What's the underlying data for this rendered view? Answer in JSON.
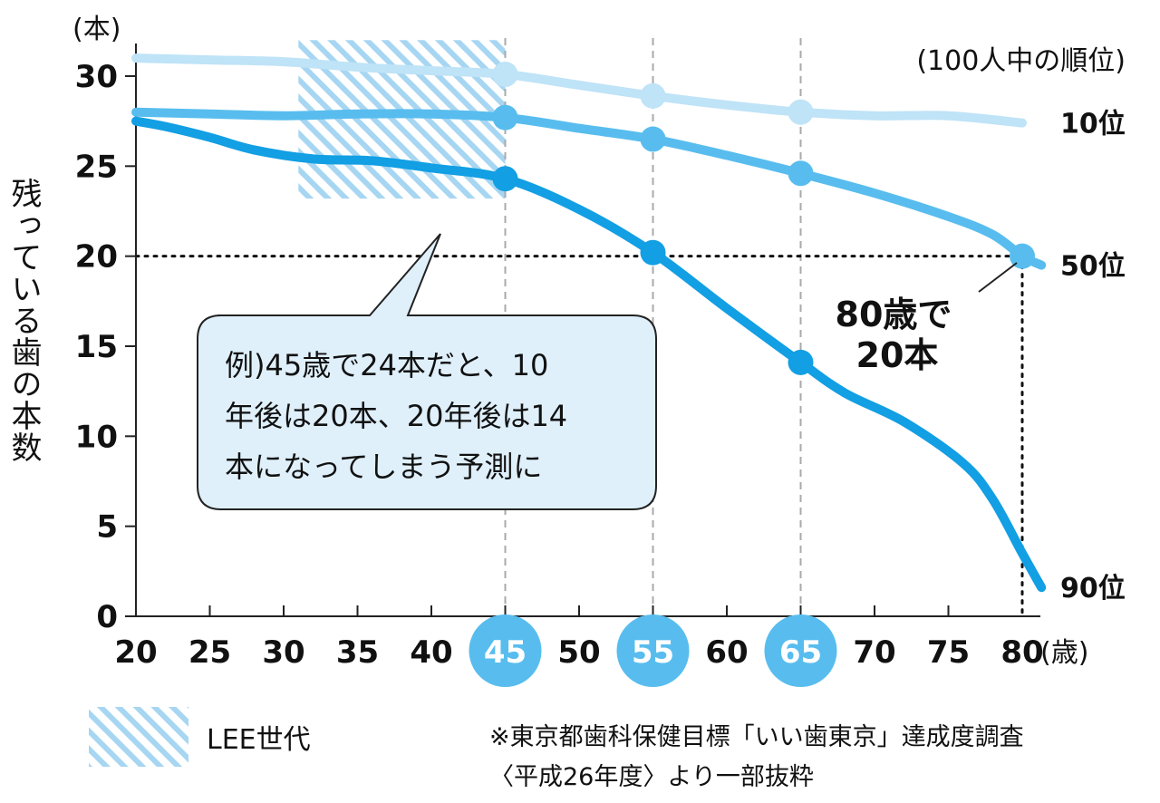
{
  "chart_data": {
    "type": "line",
    "y_unit": "(本)",
    "x_unit": "(歳)",
    "ylabel": "残っている歯の本数",
    "legend_title": "(100人中の順位)",
    "x_ticks": [
      20,
      25,
      30,
      35,
      40,
      45,
      50,
      55,
      60,
      65,
      70,
      75,
      80
    ],
    "highlighted_ticks": [
      45,
      55,
      65
    ],
    "y_ticks": [
      0,
      5,
      10,
      15,
      20,
      25,
      30
    ],
    "xlim": [
      20,
      81.5
    ],
    "ylim": [
      0,
      32
    ],
    "grid": false,
    "vertical_guides": [
      45,
      55,
      65
    ],
    "series": [
      {
        "name": "10位",
        "color": "#bfe3f7",
        "points": [
          [
            20,
            31.0
          ],
          [
            25,
            30.9
          ],
          [
            30,
            30.8
          ],
          [
            35,
            30.5
          ],
          [
            40,
            30.3
          ],
          [
            45,
            30.1
          ],
          [
            50,
            29.5
          ],
          [
            55,
            28.9
          ],
          [
            60,
            28.4
          ],
          [
            65,
            28.0
          ],
          [
            70,
            27.8
          ],
          [
            75,
            27.8
          ],
          [
            80,
            27.4
          ]
        ],
        "markers": [
          [
            45,
            30.1
          ],
          [
            55,
            28.9
          ],
          [
            65,
            28.0
          ]
        ]
      },
      {
        "name": "50位",
        "color": "#58bdee",
        "points": [
          [
            20,
            28.0
          ],
          [
            25,
            27.9
          ],
          [
            30,
            27.8
          ],
          [
            35,
            27.9
          ],
          [
            40,
            27.9
          ],
          [
            45,
            27.7
          ],
          [
            50,
            27.1
          ],
          [
            55,
            26.5
          ],
          [
            60,
            25.6
          ],
          [
            65,
            24.6
          ],
          [
            70,
            23.5
          ],
          [
            75,
            22.2
          ],
          [
            78,
            21.2
          ],
          [
            80,
            20.0
          ],
          [
            81.3,
            19.5
          ]
        ],
        "markers": [
          [
            45,
            27.7
          ],
          [
            55,
            26.5
          ],
          [
            65,
            24.6
          ],
          [
            80,
            20.0
          ]
        ]
      },
      {
        "name": "90位",
        "color": "#129fe3",
        "points": [
          [
            20,
            27.5
          ],
          [
            22,
            27.2
          ],
          [
            25,
            26.6
          ],
          [
            28,
            25.9
          ],
          [
            32,
            25.4
          ],
          [
            36,
            25.3
          ],
          [
            40,
            24.9
          ],
          [
            45,
            24.3
          ],
          [
            50,
            22.6
          ],
          [
            55,
            20.2
          ],
          [
            60,
            17.1
          ],
          [
            65,
            14.1
          ],
          [
            68,
            12.4
          ],
          [
            72,
            10.8
          ],
          [
            76,
            8.5
          ],
          [
            78,
            6.5
          ],
          [
            80,
            3.5
          ],
          [
            81.3,
            1.6
          ]
        ],
        "markers": [
          [
            45,
            24.3
          ],
          [
            55,
            20.2
          ],
          [
            65,
            14.1
          ]
        ]
      }
    ],
    "reference_line": {
      "y": 20,
      "x": 80
    },
    "shaded_band": {
      "label": "LEE世代",
      "x_range": [
        31,
        45
      ],
      "y_range": [
        23.2,
        32
      ]
    },
    "annotation": {
      "lines": [
        "80歳で",
        "20本"
      ]
    },
    "callout": {
      "lines": [
        "例)45歳で24本だと、10",
        "年後は20本、20年後は14",
        "本になってしまう予測に"
      ],
      "fill": "#dff0fb",
      "stroke": "#222222"
    },
    "source_note": [
      "※東京都歯科保健目標「いい歯東京」達成度調査",
      "〈平成26年度〉より一部抜粋"
    ],
    "colors": {
      "badge": "#58bdee",
      "guide": "#aaaaaa",
      "axis": "#222222",
      "hatch": "#a7d6f2"
    }
  }
}
